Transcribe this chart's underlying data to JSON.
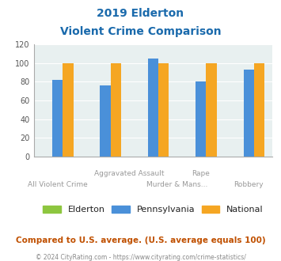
{
  "title_line1": "2019 Elderton",
  "title_line2": "Violent Crime Comparison",
  "categories": [
    "All Violent Crime",
    "Aggravated Assault",
    "Murder & Mans...",
    "Rape",
    "Robbery"
  ],
  "series": {
    "Elderton": [
      0,
      0,
      0,
      0,
      0
    ],
    "Pennsylvania": [
      82,
      76,
      105,
      80,
      93
    ],
    "National": [
      100,
      100,
      100,
      100,
      100
    ]
  },
  "colors": {
    "Elderton": "#8dc63f",
    "Pennsylvania": "#4a90d9",
    "National": "#f5a623"
  },
  "ylim": [
    0,
    120
  ],
  "yticks": [
    0,
    20,
    40,
    60,
    80,
    100,
    120
  ],
  "background_color": "#e8f0f0",
  "title_color": "#1a6aac",
  "footer_note": "Compared to U.S. average. (U.S. average equals 100)",
  "footer_copyright": "© 2024 CityRating.com - https://www.cityrating.com/crime-statistics/",
  "footer_note_color": "#c05000",
  "footer_copy_color": "#888888",
  "legend_text_color": "#222222",
  "xtick_color": "#999999"
}
